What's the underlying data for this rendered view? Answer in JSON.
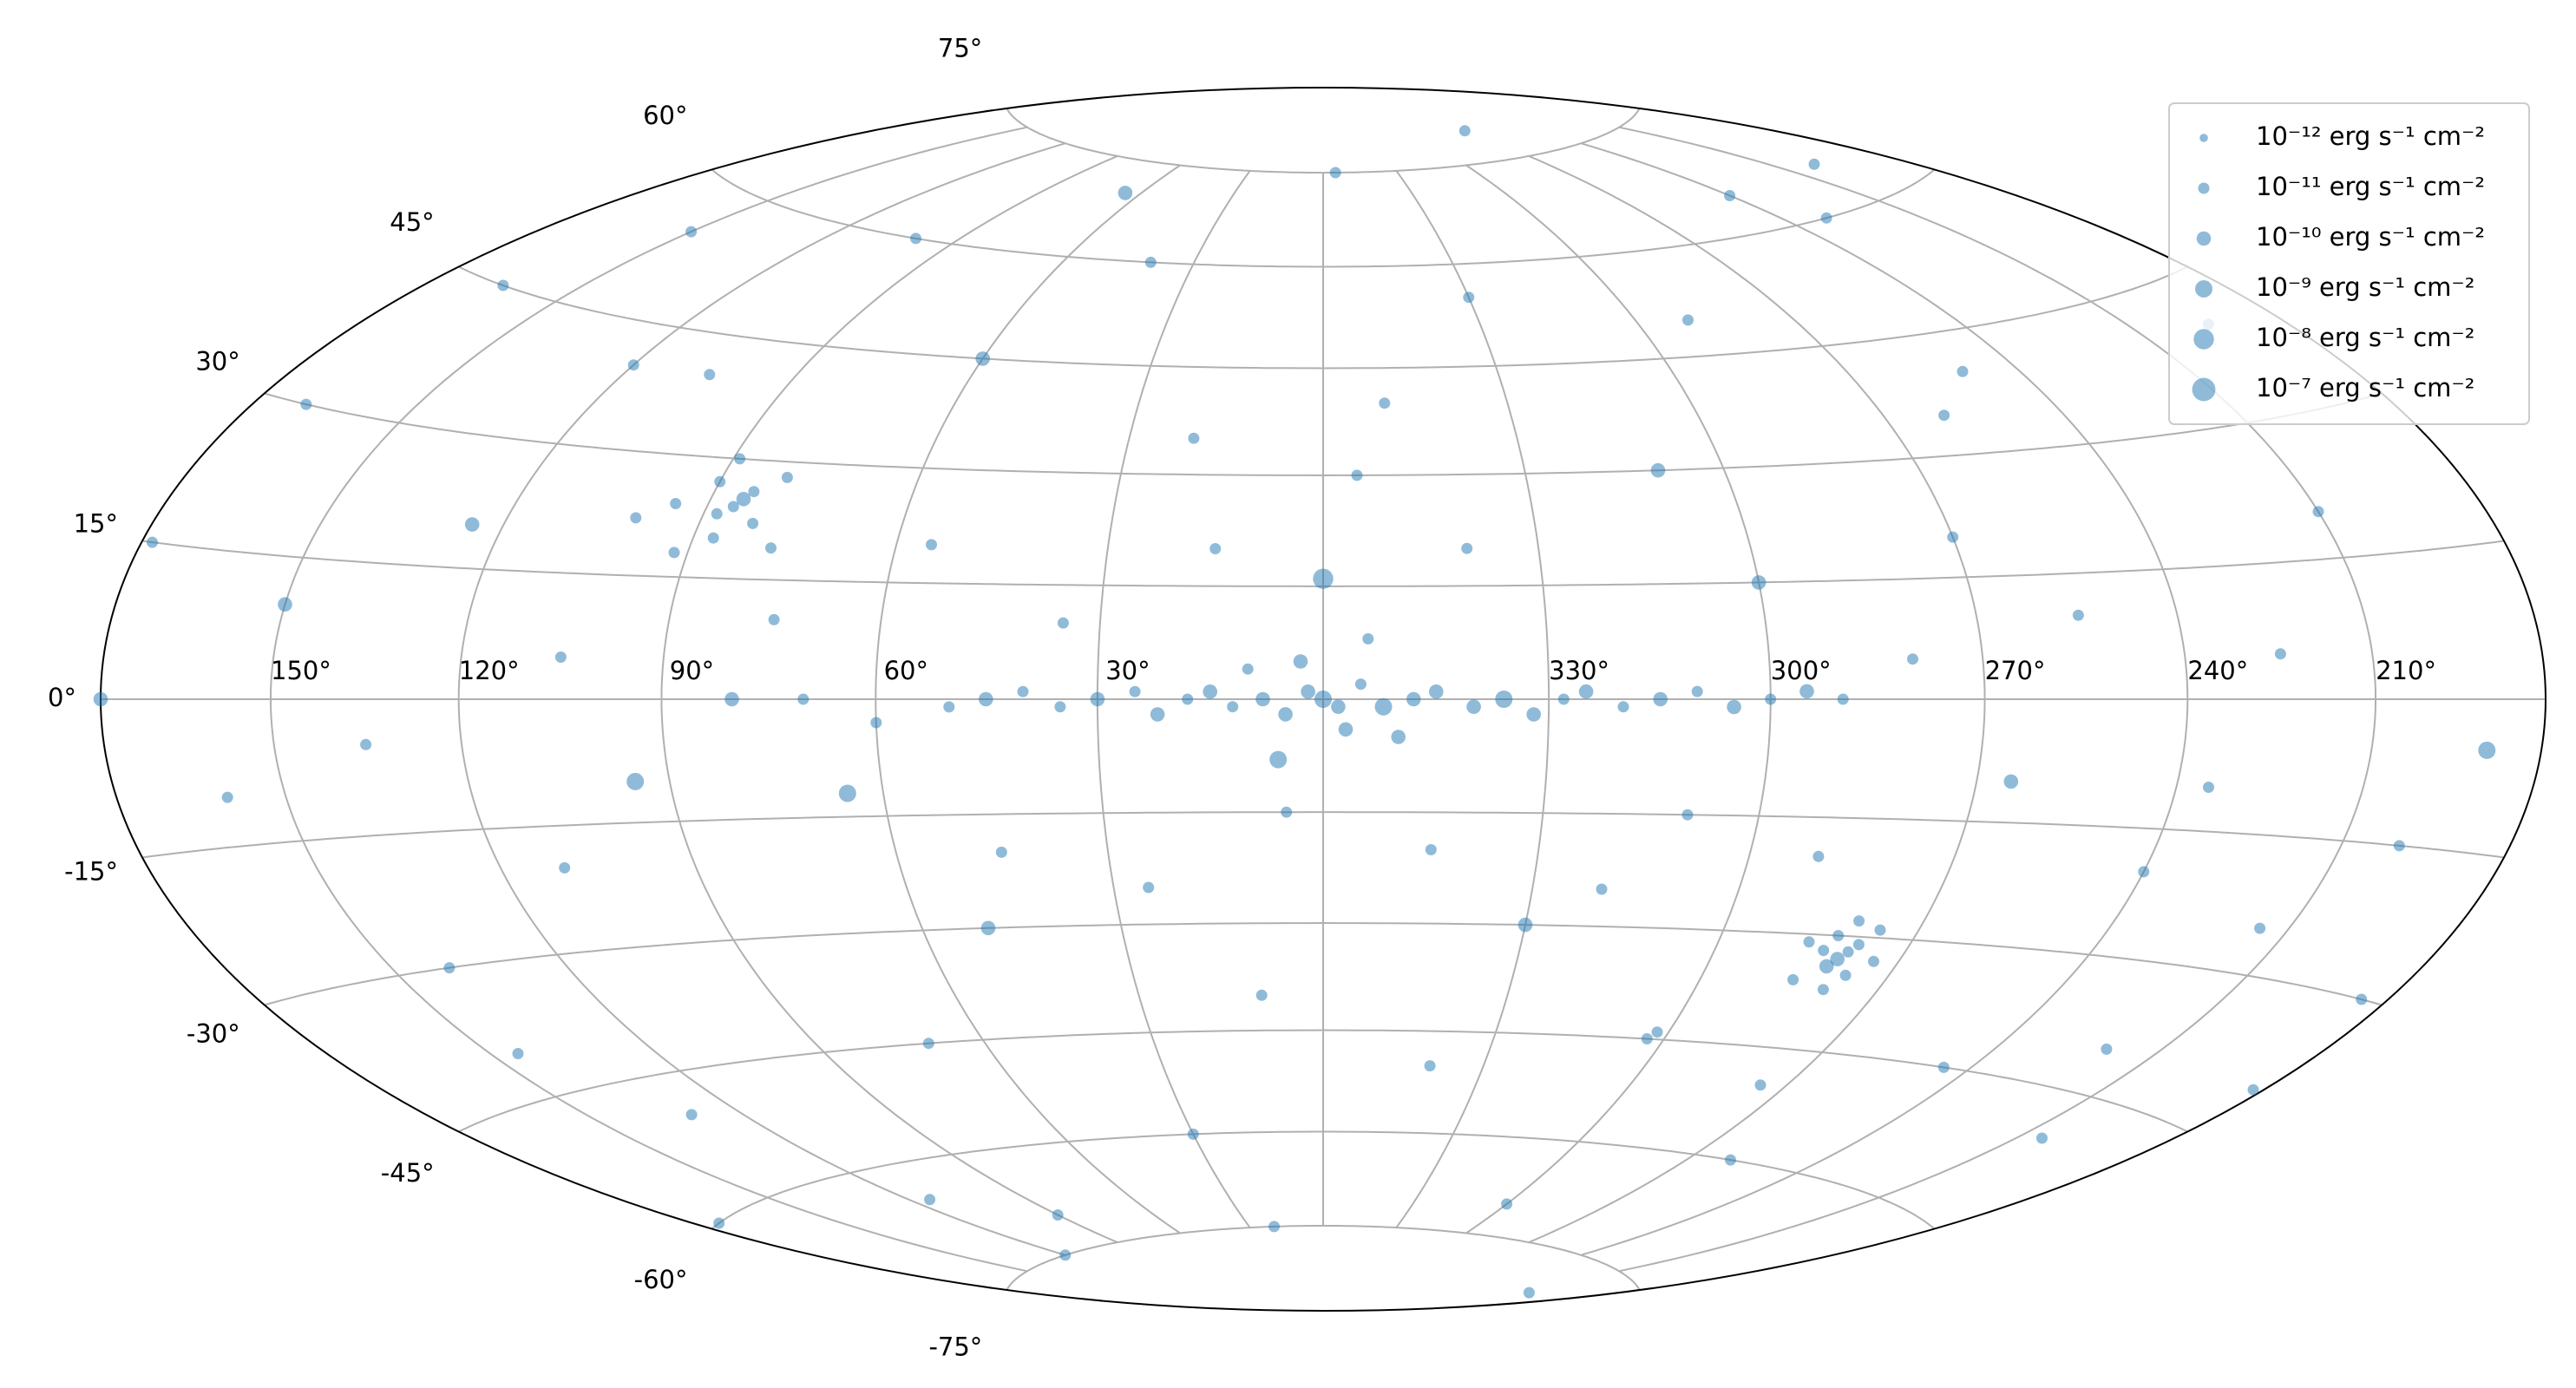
{
  "chart_data": {
    "type": "scatter",
    "projection": "hammer",
    "color": "#1f77b4",
    "alpha": 0.5,
    "grid": true,
    "legend_loc": "upper right",
    "xticks": [
      {
        "value": 150,
        "label": "150°"
      },
      {
        "value": 120,
        "label": "120°"
      },
      {
        "value": 90,
        "label": "90°"
      },
      {
        "value": 60,
        "label": "60°"
      },
      {
        "value": 30,
        "label": "30°"
      },
      {
        "value": 330,
        "label": "330°"
      },
      {
        "value": 300,
        "label": "300°"
      },
      {
        "value": 270,
        "label": "270°"
      },
      {
        "value": 240,
        "label": "240°"
      },
      {
        "value": 210,
        "label": "210°"
      }
    ],
    "yticks": [
      {
        "value": 75,
        "label": "75°"
      },
      {
        "value": 60,
        "label": "60°"
      },
      {
        "value": 45,
        "label": "45°"
      },
      {
        "value": 30,
        "label": "30°"
      },
      {
        "value": 15,
        "label": "15°"
      },
      {
        "value": 0,
        "label": "0°"
      },
      {
        "value": -15,
        "label": "-15°"
      },
      {
        "value": -30,
        "label": "-30°"
      },
      {
        "value": -45,
        "label": "-45°"
      },
      {
        "value": -60,
        "label": "-60°"
      },
      {
        "value": -75,
        "label": "-75°"
      }
    ],
    "size_legend": [
      {
        "value": 1e-12,
        "label": "10⁻¹² erg s⁻¹ cm⁻²"
      },
      {
        "value": 1e-11,
        "label": "10⁻¹¹ erg s⁻¹ cm⁻²"
      },
      {
        "value": 1e-10,
        "label": "10⁻¹⁰ erg s⁻¹ cm⁻²"
      },
      {
        "value": 1e-09,
        "label": "10⁻⁹ erg s⁻¹ cm⁻²"
      },
      {
        "value": 1e-08,
        "label": "10⁻⁸ erg s⁻¹ cm⁻²"
      },
      {
        "value": 1e-07,
        "label": "10⁻⁷ erg s⁻¹ cm⁻²"
      }
    ],
    "x": [
      0,
      2,
      358,
      5,
      355,
      8,
      12,
      15,
      18,
      22,
      25,
      30,
      35,
      40,
      45,
      50,
      352,
      348,
      345,
      340,
      336,
      332,
      328,
      325,
      320,
      315,
      310,
      305,
      300,
      295,
      290,
      3,
      357,
      10,
      350,
      6,
      354,
      60,
      70,
      80,
      65,
      280,
      279,
      281,
      278,
      282,
      277,
      283,
      276,
      285,
      279,
      274,
      286,
      280,
      302,
      303,
      85,
      86,
      84,
      88,
      82,
      90,
      87,
      80,
      92,
      95,
      78,
      89,
      100,
      120,
      150,
      160,
      170,
      140,
      130,
      110,
      100,
      60,
      40,
      20,
      350,
      330,
      310,
      290,
      270,
      250,
      230,
      210,
      200,
      190,
      220,
      240,
      260,
      300,
      340,
      10,
      30,
      50,
      70,
      90,
      115,
      175,
      200,
      150,
      125,
      105,
      95,
      75,
      55,
      45,
      25,
      15,
      0,
      340,
      320,
      300,
      280,
      265,
      255,
      245,
      225,
      215,
      195,
      185,
      165,
      135,
      145,
      105,
      65,
      355,
      270,
      20,
      200,
      330,
      310,
      290,
      275,
      260,
      235,
      205,
      180,
      178,
      182,
      35,
      5,
      345,
      355,
      240,
      120
    ],
    "y": [
      0,
      1,
      -1,
      -2,
      2,
      0,
      -1,
      1,
      0,
      -2,
      1,
      0,
      -1,
      1,
      0,
      -1,
      -1,
      0,
      1,
      -1,
      0,
      -2,
      0,
      1,
      -1,
      0,
      1,
      -1,
      0,
      1,
      0,
      5,
      -4,
      4,
      -5,
      -8,
      8,
      -3,
      0,
      0,
      -12,
      -33,
      -32,
      -34,
      -31,
      -30,
      -35,
      -32,
      -29,
      -36,
      -37,
      -33,
      -31,
      -28,
      -44,
      -45,
      25,
      24,
      26,
      23,
      22,
      27,
      20,
      28,
      18,
      24,
      19,
      30,
      22,
      40,
      10,
      -10,
      30,
      -30,
      -50,
      -20,
      60,
      45,
      60,
      35,
      40,
      55,
      30,
      50,
      20,
      40,
      60,
      20,
      -15,
      -5,
      -40,
      -20,
      -60,
      -70,
      -50,
      -40,
      -60,
      -30,
      -45,
      -70,
      -65,
      -60,
      65,
      55,
      20,
      5,
      -10,
      10,
      20,
      -20,
      -25,
      20,
      16,
      20,
      -25,
      15,
      5,
      -10,
      10,
      -45,
      5,
      -25,
      40,
      -30,
      45,
      -5,
      -40,
      40,
      70,
      75,
      80,
      -75,
      -80,
      -30,
      -15,
      -20,
      -50,
      35,
      -10,
      -50,
      0,
      15,
      -40,
      10,
      -15,
      -20,
      30,
      65,
      -75
    ],
    "sizes": [
      1e-09,
      1e-10,
      1e-10,
      1e-10,
      1e-11,
      1e-10,
      1e-11,
      1e-10,
      1e-11,
      1e-10,
      1e-11,
      1e-10,
      1e-11,
      1e-11,
      1e-10,
      1e-11,
      1e-09,
      1e-10,
      1e-10,
      1e-10,
      1e-09,
      1e-10,
      1e-11,
      1e-10,
      1e-11,
      1e-10,
      1e-11,
      1e-10,
      1e-11,
      1e-10,
      1e-11,
      1e-10,
      1e-10,
      1e-11,
      1e-10,
      1e-09,
      1e-11,
      1e-11,
      1e-11,
      1e-10,
      1e-09,
      1e-10,
      1e-11,
      1e-10,
      1e-11,
      1e-11,
      1e-11,
      1e-11,
      1e-11,
      1e-11,
      1e-11,
      1e-11,
      1e-11,
      1e-11,
      1e-11,
      1e-11,
      1e-10,
      1e-11,
      1e-11,
      1e-11,
      1e-11,
      1e-11,
      1e-11,
      1e-11,
      1e-11,
      1e-11,
      1e-11,
      1e-11,
      1e-11,
      1e-11,
      1e-10,
      1e-11,
      1e-11,
      1e-11,
      1e-11,
      1e-11,
      1e-11,
      1e-10,
      1e-11,
      1e-11,
      1e-11,
      1e-11,
      1e-10,
      1e-11,
      1e-11,
      1e-11,
      1e-11,
      1e-11,
      1e-11,
      1e-09,
      1e-11,
      1e-11,
      1e-11,
      1e-11,
      1e-11,
      1e-11,
      1e-11,
      1e-10,
      1e-11,
      1e-11,
      1e-11,
      1e-11,
      1e-11,
      1e-11,
      1e-10,
      1e-11,
      1e-09,
      1e-11,
      1e-11,
      1e-11,
      1e-11,
      1e-11,
      1e-08,
      1e-11,
      1e-11,
      1e-10,
      1e-11,
      1e-10,
      1e-11,
      1e-11,
      1e-11,
      1e-11,
      1e-11,
      1e-11,
      1e-11,
      1e-11,
      1e-11,
      1e-11,
      1e-10,
      1e-11,
      1e-11,
      1e-11,
      1e-11,
      1e-10,
      1e-11,
      1e-11,
      1e-11,
      1e-11,
      1e-11,
      1e-11,
      1e-10,
      1e-11,
      1e-11,
      1e-11,
      1e-11,
      1e-11,
      1e-11,
      1e-11,
      1e-11
    ]
  }
}
